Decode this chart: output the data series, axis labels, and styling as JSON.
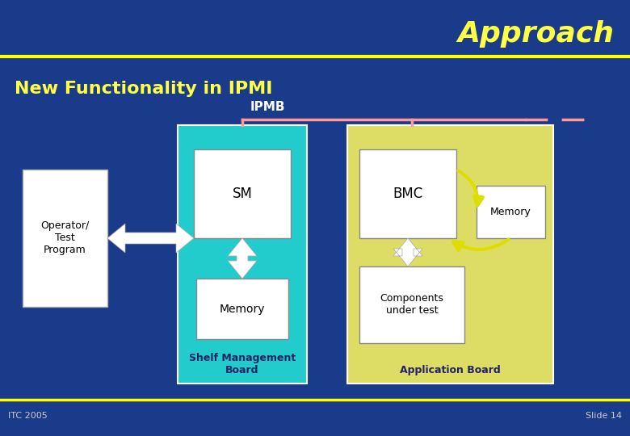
{
  "bg_color": "#1a3a8a",
  "title_text": "Approach",
  "title_color": "#ffff44",
  "title_fontsize": 26,
  "subtitle_text": "New Functionality in IPMI",
  "subtitle_color": "#ffff44",
  "subtitle_fontsize": 16,
  "ipmb_label": "IPMB",
  "line_color": "#ff9999",
  "footer_left": "ITC 2005",
  "footer_right": "Slide 14",
  "footer_color": "#cccccc",
  "yellow_line_color": "#ffff00",
  "teal_color": "#22cccc",
  "yellow_color": "#dddd66",
  "white_color": "#ffffff",
  "arrow_white": "#ffffff",
  "arrow_yellow": "#dddd00",
  "label_dark": "#222266"
}
